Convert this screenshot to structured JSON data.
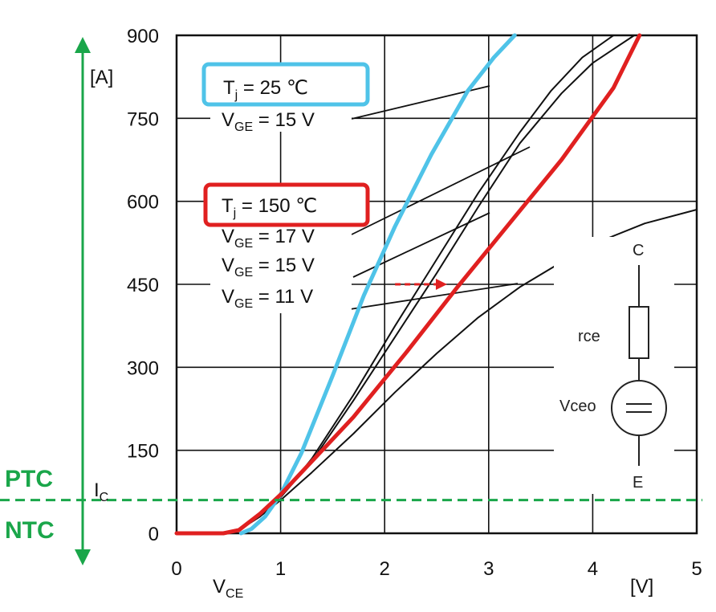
{
  "chart_data": {
    "type": "line",
    "xlabel": {
      "main": "V",
      "sub": "CE"
    },
    "x_unit": "[V]",
    "ylabel": "[A]",
    "xlim": [
      0,
      5
    ],
    "ylim": [
      0,
      900
    ],
    "x_ticks": [
      "0",
      "1",
      "2",
      "3",
      "4",
      "5"
    ],
    "y_ticks": [
      "0",
      "150",
      "300",
      "450",
      "600",
      "750",
      "900"
    ],
    "grid": true,
    "series": [
      {
        "color": "#4fc3e8",
        "x": [
          0.62,
          0.72,
          0.85,
          1.0,
          1.2,
          1.5,
          1.8,
          2.1,
          2.45,
          2.8,
          3.05,
          3.25
        ],
        "y": [
          0,
          8,
          30,
          70,
          145,
          285,
          430,
          555,
          685,
          800,
          860,
          900
        ]
      },
      {
        "color": "#e02020",
        "x": [
          0.0,
          0.45,
          0.6,
          0.8,
          1.0,
          1.3,
          1.7,
          2.2,
          2.7,
          3.2,
          3.7,
          4.2,
          4.45
        ],
        "y": [
          0,
          0,
          6,
          35,
          70,
          130,
          210,
          325,
          445,
          560,
          675,
          805,
          900
        ]
      },
      {
        "color": "#111111",
        "x": [
          0.55,
          0.8,
          1.0,
          1.3,
          1.7,
          2.1,
          2.5,
          2.9,
          3.3,
          3.7,
          4.0,
          4.4
        ],
        "y": [
          0,
          30,
          65,
          130,
          240,
          355,
          470,
          590,
          705,
          795,
          850,
          900
        ]
      },
      {
        "color": "#111111",
        "x": [
          0.55,
          0.8,
          1.0,
          1.3,
          1.7,
          2.1,
          2.5,
          2.9,
          3.3,
          3.6,
          3.9,
          4.2
        ],
        "y": [
          0,
          30,
          65,
          135,
          250,
          375,
          495,
          615,
          725,
          800,
          860,
          900
        ]
      },
      {
        "color": "#111111",
        "x": [
          0.55,
          0.8,
          1.0,
          1.3,
          1.7,
          2.1,
          2.5,
          2.9,
          3.3,
          3.7,
          4.1,
          4.5,
          5.0
        ],
        "y": [
          0,
          30,
          60,
          110,
          180,
          255,
          325,
          390,
          445,
          490,
          530,
          560,
          585
        ]
      }
    ],
    "boxes": [
      {
        "line1": "T",
        "line1_sub": "j",
        "line1_rest": " = 25 ℃",
        "line2": "V",
        "line2_sub": "GE",
        "line2_rest": " = 15 V",
        "color": "#4fc3e8"
      },
      {
        "line1": "T",
        "line1_sub": "j",
        "line1_rest": " = 150 ℃",
        "color": "#e02020"
      }
    ],
    "labels_150": [
      {
        "main": "V",
        "sub": "GE",
        "rest": " = 17 V"
      },
      {
        "main": "V",
        "sub": "GE",
        "rest": " = 15 V"
      },
      {
        "main": "V",
        "sub": "GE",
        "rest": " = 11 V"
      }
    ],
    "crossover": {
      "y": 60,
      "label_main": "I",
      "label_sub": "C",
      "above": "PTC",
      "below": "NTC",
      "color": "#1aa64a"
    },
    "shift_arrow": {
      "from_x": 2.1,
      "to_x": 2.6,
      "y": 450,
      "color": "#e02020"
    },
    "schematic": {
      "top": "C",
      "resistor": "rce",
      "source": "Vceo",
      "bottom": "E"
    }
  }
}
